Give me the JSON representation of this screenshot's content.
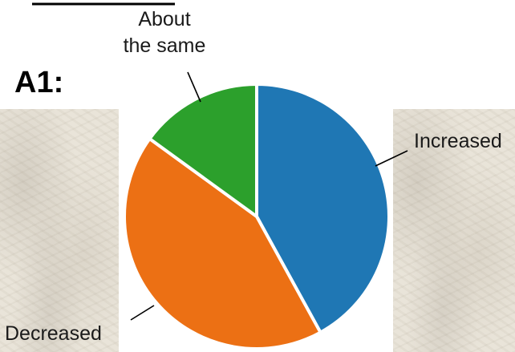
{
  "panel_label": "A1:",
  "chart_data": {
    "type": "pie",
    "title": "",
    "categories": [
      "Increased",
      "Decreased",
      "About the same"
    ],
    "values": [
      42,
      43,
      15
    ],
    "colors": [
      "#1f77b4",
      "#ec7014",
      "#2ca02c"
    ],
    "labels": [
      {
        "lines": [
          "Increased"
        ]
      },
      {
        "lines": [
          "Decreased"
        ]
      },
      {
        "lines": [
          "About",
          "the same"
        ]
      }
    ],
    "start_angle_deg": 0,
    "direction": "clockwise"
  }
}
